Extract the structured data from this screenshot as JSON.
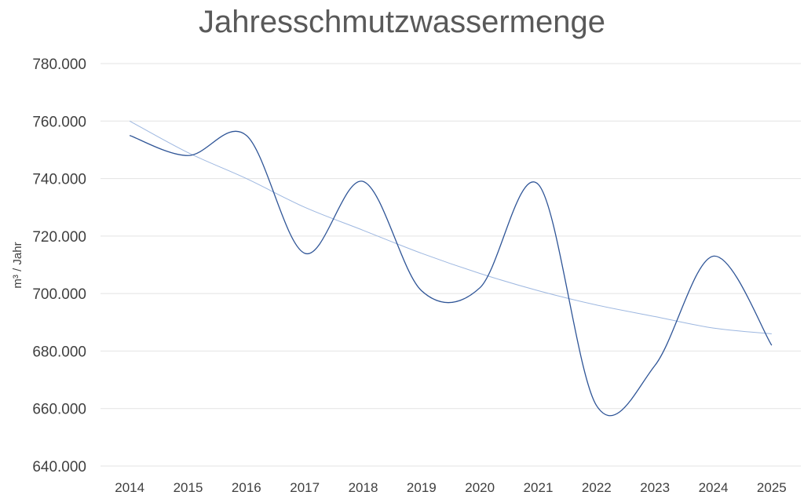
{
  "chart_data": {
    "type": "line",
    "title": "Jahresschmutzwassermenge",
    "ylabel": "m³ / Jahr",
    "xlabel": "",
    "categories": [
      "2014",
      "2015",
      "2016",
      "2017",
      "2018",
      "2019",
      "2020",
      "2021",
      "2022",
      "2023",
      "2024",
      "2025"
    ],
    "y_tick_labels": [
      "640.000",
      "660.000",
      "680.000",
      "700.000",
      "720.000",
      "740.000",
      "760.000",
      "780.000"
    ],
    "ylim": [
      640000,
      780000
    ],
    "ytick_step": 20000,
    "grid": true,
    "legend": "none",
    "series": [
      {
        "values": [
          755000,
          748000,
          755000,
          714000,
          739000,
          701000,
          702000,
          738000,
          661000,
          675000,
          713000,
          682000
        ],
        "color": "#2f5597",
        "smooth": true
      }
    ],
    "trendline": {
      "values": [
        760000,
        749000,
        740000,
        730000,
        722000,
        714000,
        707000,
        701000,
        696000,
        692000,
        688000,
        686000
      ],
      "color": "#9db7e0"
    }
  }
}
